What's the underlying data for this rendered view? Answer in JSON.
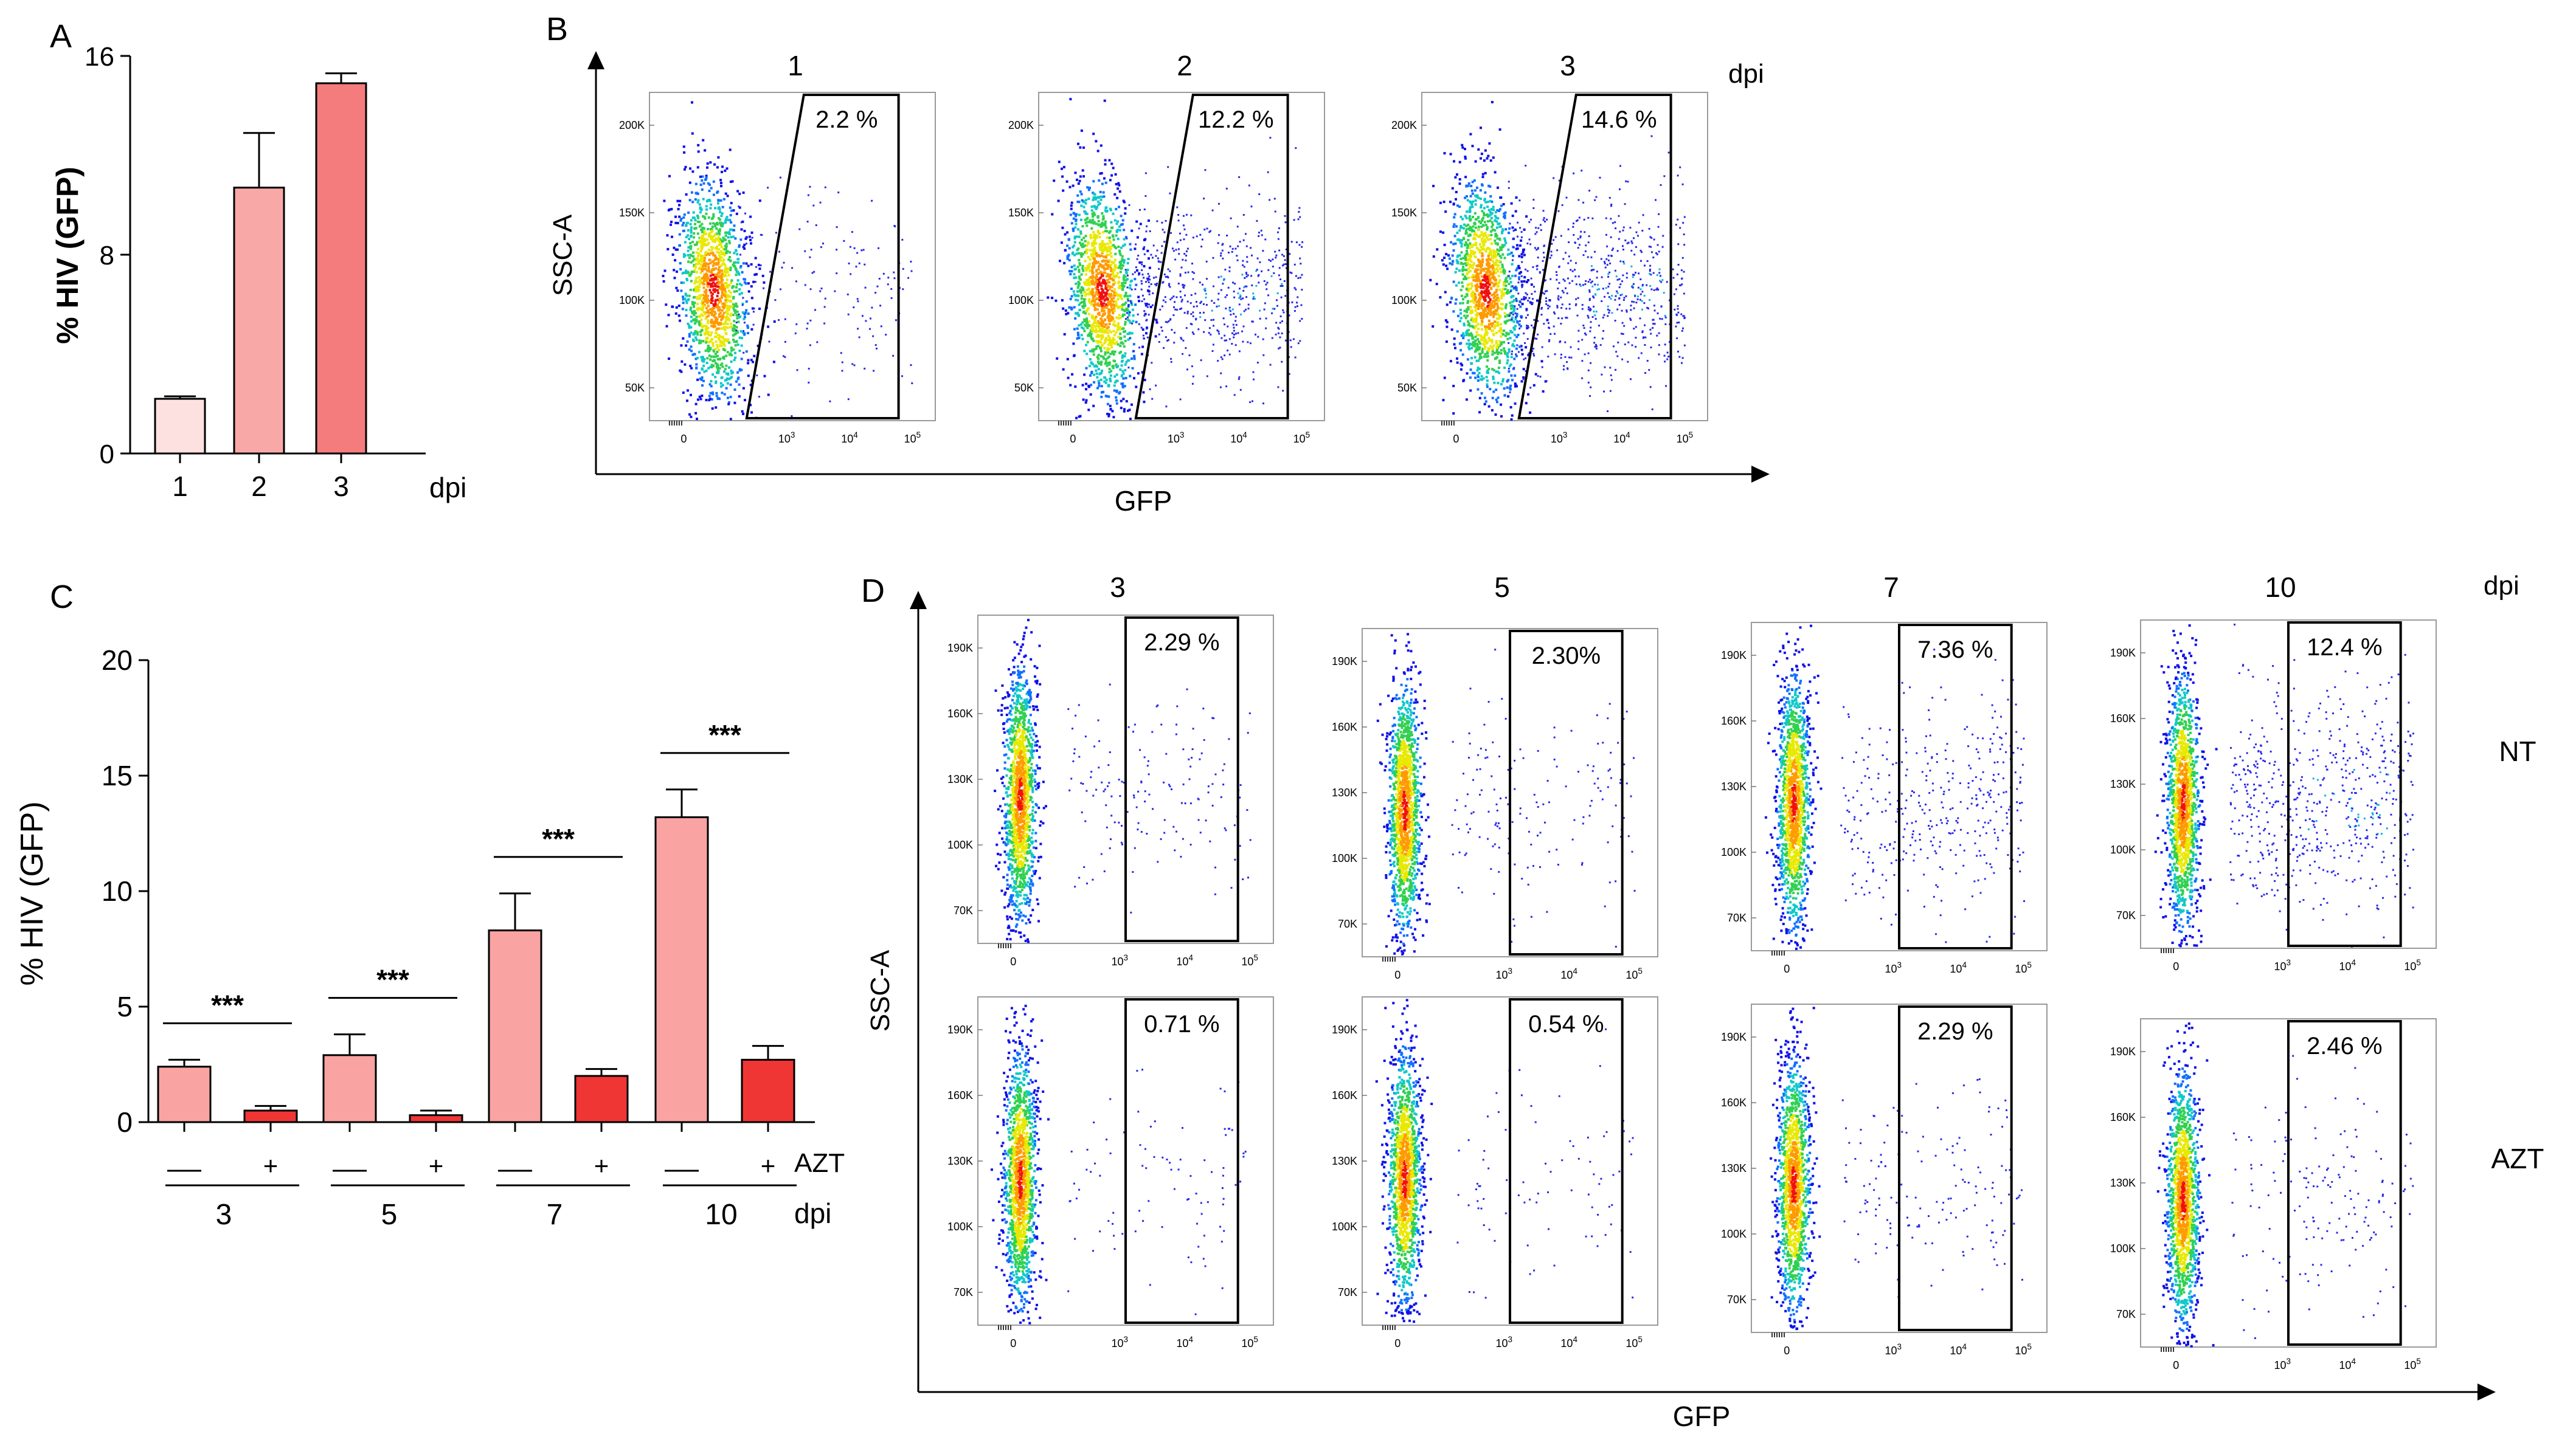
{
  "chart_data": [
    {
      "type": "bar",
      "panel": "A",
      "ylabel": "% HIV (GFP)",
      "xlabel": "dpi",
      "ylim": [
        0,
        16
      ],
      "yticks": [
        "0",
        "8",
        "16"
      ],
      "categories": [
        "1",
        "2",
        "3"
      ],
      "values": [
        2.2,
        10.7,
        14.9
      ],
      "errors": [
        0.1,
        2.2,
        0.4
      ],
      "colors": [
        "#fde0e0",
        "#f9a8a8",
        "#f47c7c"
      ]
    },
    {
      "type": "scatter",
      "panel": "B",
      "title_unit": "dpi",
      "xlabel": "GFP",
      "ylabel": "SSC-A",
      "yticks": [
        "200K",
        "150K",
        "100K",
        "50K"
      ],
      "xticks": [
        "0",
        "10",
        "10",
        "10"
      ],
      "xtick_exponents": [
        "",
        "3",
        "4",
        "5"
      ],
      "plots": [
        {
          "title": "1",
          "gate_label": "2.2 %",
          "gfp_fraction": 0.022
        },
        {
          "title": "2",
          "gate_label": "12.2 %",
          "gfp_fraction": 0.122
        },
        {
          "title": "3",
          "gate_label": "14.6 %",
          "gfp_fraction": 0.146
        }
      ]
    },
    {
      "type": "bar",
      "panel": "C",
      "ylabel": "% HIV (GFP)",
      "ylim": [
        0,
        20
      ],
      "yticks": [
        "0",
        "5",
        "10",
        "15",
        "20"
      ],
      "categories": [
        "3",
        "5",
        "7",
        "10"
      ],
      "xlabel": "dpi",
      "treatment_label": "AZT",
      "treatment_minus": "—",
      "treatment_plus": "+",
      "significance": [
        "***",
        "***",
        "***",
        "***"
      ],
      "series": [
        {
          "name": "—",
          "color": "#f9a3a3",
          "values": [
            2.4,
            2.9,
            8.3,
            13.2
          ],
          "errors": [
            0.3,
            0.9,
            1.6,
            1.2
          ]
        },
        {
          "name": "+",
          "color": "#f03535",
          "values": [
            0.5,
            0.3,
            2.0,
            2.7
          ],
          "errors": [
            0.2,
            0.2,
            0.3,
            0.6
          ]
        }
      ]
    },
    {
      "type": "scatter",
      "panel": "D",
      "title_unit": "dpi",
      "xlabel": "GFP",
      "ylabel": "SSC-A",
      "yticks": [
        "190K",
        "160K",
        "130K",
        "100K",
        "70K"
      ],
      "xticks": [
        "0",
        "10",
        "10",
        "10"
      ],
      "xtick_exponents": [
        "",
        "3",
        "4",
        "5"
      ],
      "columns": [
        "3",
        "5",
        "7",
        "10"
      ],
      "rows": [
        "NT",
        "AZT"
      ],
      "gate_labels": [
        [
          "2.29 %",
          "2.30%",
          "7.36 %",
          "12.4 %"
        ],
        [
          "0.71 %",
          "0.54 %",
          "2.29 %",
          "2.46 %"
        ]
      ],
      "gfp_fractions": [
        [
          0.0229,
          0.023,
          0.0736,
          0.124
        ],
        [
          0.0071,
          0.0054,
          0.0229,
          0.0246
        ]
      ]
    }
  ],
  "labels": {
    "A": "A",
    "B": "B",
    "C": "C",
    "D": "D"
  }
}
